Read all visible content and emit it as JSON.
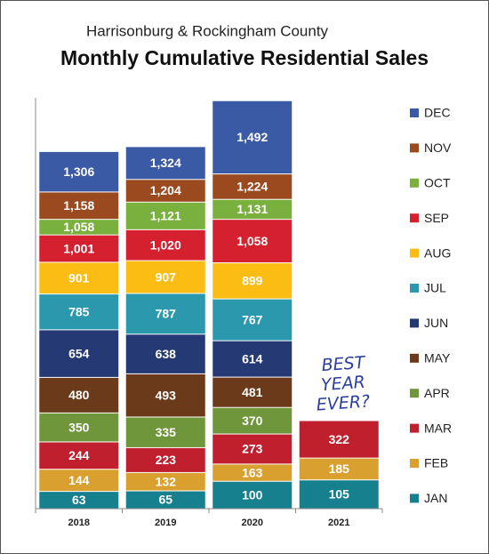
{
  "chart_data": {
    "type": "overlap-bar",
    "subtitle": "Harrisonburg & Rockingham County",
    "title": "Monthly Cumulative Residential Sales",
    "categories": [
      "2018",
      "2019",
      "2020",
      "2021"
    ],
    "ylim": [
      0,
      1600
    ],
    "legend": "right",
    "annotation": [
      "BEST",
      "YEAR",
      "EVER?"
    ],
    "series": [
      {
        "name": "JAN",
        "color": "#17808f",
        "values": [
          63,
          65,
          100,
          105
        ]
      },
      {
        "name": "FEB",
        "color": "#d9a030",
        "values": [
          144,
          132,
          163,
          185
        ]
      },
      {
        "name": "MAR",
        "color": "#c0202e",
        "values": [
          244,
          223,
          273,
          322
        ]
      },
      {
        "name": "APR",
        "color": "#6f963a",
        "values": [
          350,
          335,
          370,
          null
        ]
      },
      {
        "name": "MAY",
        "color": "#6b3a1a",
        "values": [
          480,
          493,
          481,
          null
        ]
      },
      {
        "name": "JUN",
        "color": "#253a74",
        "values": [
          654,
          638,
          614,
          null
        ]
      },
      {
        "name": "JUL",
        "color": "#2b98ae",
        "values": [
          785,
          787,
          767,
          null
        ]
      },
      {
        "name": "AUG",
        "color": "#fbbd14",
        "values": [
          901,
          907,
          899,
          null
        ]
      },
      {
        "name": "SEP",
        "color": "#d4202f",
        "values": [
          1001,
          1020,
          1058,
          null
        ],
        "value_labels": [
          "1,001",
          "1,020",
          "1,058",
          null
        ]
      },
      {
        "name": "OCT",
        "color": "#7ab03d",
        "values": [
          1058,
          1121,
          1131,
          null
        ],
        "value_labels": [
          "1,058",
          "1,121",
          "1,131",
          null
        ]
      },
      {
        "name": "NOV",
        "color": "#9a4a1e",
        "values": [
          1158,
          1204,
          1224,
          null
        ],
        "value_labels": [
          "1,158",
          "1,204",
          "1,224",
          null
        ]
      },
      {
        "name": "DEC",
        "color": "#3b5aa6",
        "values": [
          1306,
          1324,
          1492,
          null
        ],
        "value_labels": [
          "1,306",
          "1,324",
          "1,492",
          null
        ]
      }
    ]
  }
}
